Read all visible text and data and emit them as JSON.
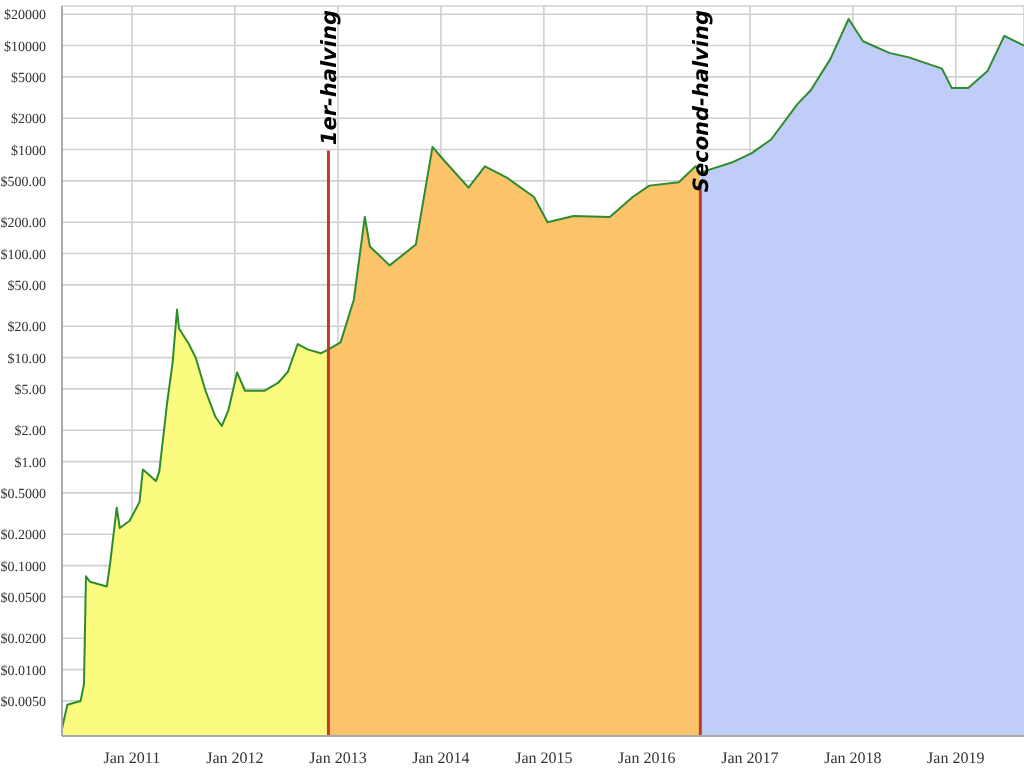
{
  "chart_data": {
    "type": "area",
    "log": "y",
    "grid": true,
    "legend": false,
    "marker": "none",
    "xlim": [
      "2010-04-28",
      "2019-08-31"
    ],
    "xticks": [
      {
        "value": "2011-01-01",
        "label": "Jan 2011"
      },
      {
        "value": "2012-01-01",
        "label": "Jan 2012"
      },
      {
        "value": "2013-01-01",
        "label": "Jan 2013"
      },
      {
        "value": "2014-01-01",
        "label": "Jan 2014"
      },
      {
        "value": "2015-01-01",
        "label": "Jan 2015"
      },
      {
        "value": "2016-01-01",
        "label": "Jan 2016"
      },
      {
        "value": "2017-01-01",
        "label": "Jan 2017"
      },
      {
        "value": "2018-01-01",
        "label": "Jan 2018"
      },
      {
        "value": "2019-01-01",
        "label": "Jan 2019"
      }
    ],
    "ylim": [
      0.0023,
      24000
    ],
    "yticks": [
      {
        "value": 0.005,
        "label": "$0.0050"
      },
      {
        "value": 0.01,
        "label": "$0.0100"
      },
      {
        "value": 0.02,
        "label": "$0.0200"
      },
      {
        "value": 0.05,
        "label": "$0.0500"
      },
      {
        "value": 0.1,
        "label": "$0.1000"
      },
      {
        "value": 0.2,
        "label": "$0.2000"
      },
      {
        "value": 0.5,
        "label": "$0.5000"
      },
      {
        "value": 1,
        "label": "$1.00"
      },
      {
        "value": 2,
        "label": "$2.00"
      },
      {
        "value": 5,
        "label": "$5.00"
      },
      {
        "value": 10,
        "label": "$10.00"
      },
      {
        "value": 20,
        "label": "$20.00"
      },
      {
        "value": 50,
        "label": "$50.00"
      },
      {
        "value": 100,
        "label": "$100.00"
      },
      {
        "value": 200,
        "label": "$200.00"
      },
      {
        "value": 500,
        "label": "$500.00"
      },
      {
        "value": 1000,
        "label": "$1000"
      },
      {
        "value": 2000,
        "label": "$2000"
      },
      {
        "value": 5000,
        "label": "$5000"
      },
      {
        "value": 10000,
        "label": "$10000"
      },
      {
        "value": 20000,
        "label": "$20000"
      }
    ],
    "series": [
      {
        "color": "#fbfb7f",
        "x": [
          "2010-04-28",
          "2010-05-17",
          "2010-07-03",
          "2010-07-15",
          "2010-07-22",
          "2010-08-05",
          "2010-10-04",
          "2010-10-16",
          "2010-11-08",
          "2010-11-19",
          "2010-12-24",
          "2011-01-28",
          "2011-02-09",
          "2011-03-27",
          "2011-04-08",
          "2011-05-06",
          "2011-05-25",
          "2011-06-10",
          "2011-06-17",
          "2011-07-22",
          "2011-08-15",
          "2011-09-19",
          "2011-10-24",
          "2011-11-16",
          "2011-12-09",
          "2012-01-09",
          "2012-02-06",
          "2012-04-16",
          "2012-06-02",
          "2012-07-07",
          "2012-08-11",
          "2012-09-15",
          "2012-11-01",
          "2012-11-28"
        ],
        "values": [
          0.0027,
          0.0046,
          0.005,
          0.0073,
          0.079,
          0.07,
          0.063,
          0.107,
          0.36,
          0.23,
          0.27,
          0.41,
          0.84,
          0.65,
          0.8,
          3.7,
          8.8,
          29,
          19,
          13.5,
          10,
          4.8,
          2.7,
          2.2,
          3.1,
          7.2,
          4.8,
          4.8,
          5.7,
          7.3,
          13.5,
          12,
          11,
          12
        ]
      },
      {
        "color": "#fcc46a",
        "x": [
          "2012-11-28",
          "2013-01-10",
          "2013-02-26",
          "2013-04-06",
          "2013-04-24",
          "2013-07-03",
          "2013-10-04",
          "2013-12-02",
          "2014-01-06",
          "2014-04-09",
          "2014-06-06",
          "2014-08-26",
          "2014-11-27",
          "2015-01-14",
          "2015-04-16",
          "2015-08-23",
          "2015-11-12",
          "2016-01-10",
          "2016-04-24",
          "2016-06-22",
          "2016-07-09"
        ],
        "values": [
          12,
          14,
          36,
          225,
          117,
          77,
          122,
          1060,
          820,
          430,
          690,
          530,
          350,
          200,
          230,
          225,
          350,
          450,
          485,
          690,
          600
        ]
      },
      {
        "color": "#bfcdf8",
        "x": [
          "2016-07-09",
          "2016-10-28",
          "2017-01-06",
          "2017-03-17",
          "2017-06-19",
          "2017-08-04",
          "2017-10-13",
          "2017-12-17",
          "2018-02-06",
          "2018-05-10",
          "2018-07-19",
          "2018-11-13",
          "2018-12-18",
          "2019-02-14",
          "2019-04-24",
          "2019-06-22",
          "2019-08-31"
        ],
        "values": [
          600,
          750,
          920,
          1250,
          2750,
          3700,
          7400,
          18000,
          11000,
          8500,
          7700,
          6000,
          3900,
          3900,
          5700,
          12400,
          10000
        ]
      },
      {
        "type": "line",
        "color": "#2e8b2e",
        "x": [
          "2010-04-28",
          "2010-05-17",
          "2010-07-03",
          "2010-07-15",
          "2010-07-22",
          "2010-08-05",
          "2010-10-04",
          "2010-10-16",
          "2010-11-08",
          "2010-11-19",
          "2010-12-24",
          "2011-01-28",
          "2011-02-09",
          "2011-03-27",
          "2011-04-08",
          "2011-05-06",
          "2011-05-25",
          "2011-06-10",
          "2011-06-17",
          "2011-07-22",
          "2011-08-15",
          "2011-09-19",
          "2011-10-24",
          "2011-11-16",
          "2011-12-09",
          "2012-01-09",
          "2012-02-06",
          "2012-04-16",
          "2012-06-02",
          "2012-07-07",
          "2012-08-11",
          "2012-09-15",
          "2012-11-01",
          "2012-11-28",
          "2013-01-10",
          "2013-02-26",
          "2013-04-06",
          "2013-04-24",
          "2013-07-03",
          "2013-10-04",
          "2013-12-02",
          "2014-01-06",
          "2014-04-09",
          "2014-06-06",
          "2014-08-26",
          "2014-11-27",
          "2015-01-14",
          "2015-04-16",
          "2015-08-23",
          "2015-11-12",
          "2016-01-10",
          "2016-04-24",
          "2016-06-22",
          "2016-07-09",
          "2016-10-28",
          "2017-01-06",
          "2017-03-17",
          "2017-06-19",
          "2017-08-04",
          "2017-10-13",
          "2017-12-17",
          "2018-02-06",
          "2018-05-10",
          "2018-07-19",
          "2018-11-13",
          "2018-12-18",
          "2019-02-14",
          "2019-04-24",
          "2019-06-22",
          "2019-08-31"
        ],
        "values": [
          0.0027,
          0.0046,
          0.005,
          0.0073,
          0.079,
          0.07,
          0.063,
          0.107,
          0.36,
          0.23,
          0.27,
          0.41,
          0.84,
          0.65,
          0.8,
          3.7,
          8.8,
          29,
          19,
          13.5,
          10,
          4.8,
          2.7,
          2.2,
          3.1,
          7.2,
          4.8,
          4.8,
          5.7,
          7.3,
          13.5,
          12,
          11,
          12,
          14,
          36,
          225,
          117,
          77,
          122,
          1060,
          820,
          430,
          690,
          530,
          350,
          200,
          230,
          225,
          350,
          450,
          485,
          690,
          600,
          750,
          920,
          1250,
          2750,
          3700,
          7400,
          18000,
          11000,
          8500,
          7700,
          6000,
          3900,
          3900,
          5700,
          12400,
          10000
        ]
      }
    ],
    "ref_lines": [
      {
        "axis": "x",
        "value": "2012-11-28",
        "label": "1er-halving",
        "color": "#c0392b"
      },
      {
        "axis": "x",
        "value": "2016-07-09",
        "label": "Second-halving",
        "color": "#c0392b"
      }
    ]
  }
}
